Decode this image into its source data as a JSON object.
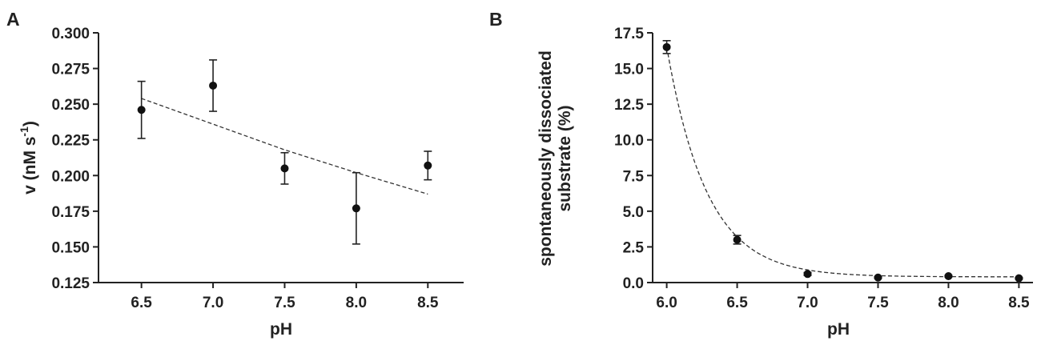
{
  "chart_data": [
    {
      "panel": "A",
      "type": "scatter",
      "xlabel": "pH",
      "ylabel_main": "v (nM s",
      "ylabel_sup": "-1",
      "ylabel_close": ")",
      "xlim": [
        6.2,
        8.75
      ],
      "ylim": [
        0.125,
        0.3
      ],
      "x_ticks": [
        6.5,
        7.0,
        7.5,
        8.0,
        8.5
      ],
      "x_tick_labels": [
        "6.5",
        "7.0",
        "7.5",
        "8.0",
        "8.5"
      ],
      "y_ticks": [
        0.125,
        0.15,
        0.175,
        0.2,
        0.225,
        0.25,
        0.275,
        0.3
      ],
      "y_tick_labels": [
        "0.125",
        "0.150",
        "0.175",
        "0.200",
        "0.225",
        "0.250",
        "0.275",
        "0.300"
      ],
      "points": [
        {
          "x": 6.5,
          "y": 0.246,
          "err": 0.02
        },
        {
          "x": 7.0,
          "y": 0.263,
          "err": 0.018
        },
        {
          "x": 7.5,
          "y": 0.205,
          "err": 0.011
        },
        {
          "x": 8.0,
          "y": 0.177,
          "err": 0.025
        },
        {
          "x": 8.5,
          "y": 0.207,
          "err": 0.01
        }
      ],
      "fit": {
        "x": [
          6.5,
          7.0,
          7.5,
          8.0,
          8.5
        ],
        "y": [
          0.254,
          0.236,
          0.218,
          0.202,
          0.187
        ]
      },
      "grid": false
    },
    {
      "panel": "B",
      "type": "scatter",
      "xlabel": "pH",
      "ylabel_line1": "spontaneously dissociated",
      "ylabel_line2": "substrate  (%)",
      "xlim": [
        5.9,
        8.6
      ],
      "ylim": [
        0,
        17.5
      ],
      "x_ticks": [
        6.0,
        6.5,
        7.0,
        7.5,
        8.0,
        8.5
      ],
      "x_tick_labels": [
        "6.0",
        "6.5",
        "7.0",
        "7.5",
        "8.0",
        "8.5"
      ],
      "y_ticks": [
        0,
        2.5,
        5,
        7.5,
        10,
        12.5,
        15,
        17.5
      ],
      "y_tick_labels": [
        "0.0",
        "2.5",
        "5.0",
        "7.5",
        "10.0",
        "12.5",
        "15.0",
        "17.5"
      ],
      "points": [
        {
          "x": 6.0,
          "y": 16.5,
          "err": 0.45
        },
        {
          "x": 6.5,
          "y": 3.0,
          "err": 0.3
        },
        {
          "x": 7.0,
          "y": 0.6,
          "err": 0.1
        },
        {
          "x": 7.5,
          "y": 0.35,
          "err": 0.05
        },
        {
          "x": 8.0,
          "y": 0.45,
          "err": 0.05
        },
        {
          "x": 8.5,
          "y": 0.3,
          "err": 0.05
        }
      ],
      "fit": {
        "model": "exponential",
        "plateau": 0.4,
        "span": 16.1,
        "k": 3.5,
        "x0": 6.0,
        "x_end": 8.5
      },
      "grid": false
    }
  ]
}
